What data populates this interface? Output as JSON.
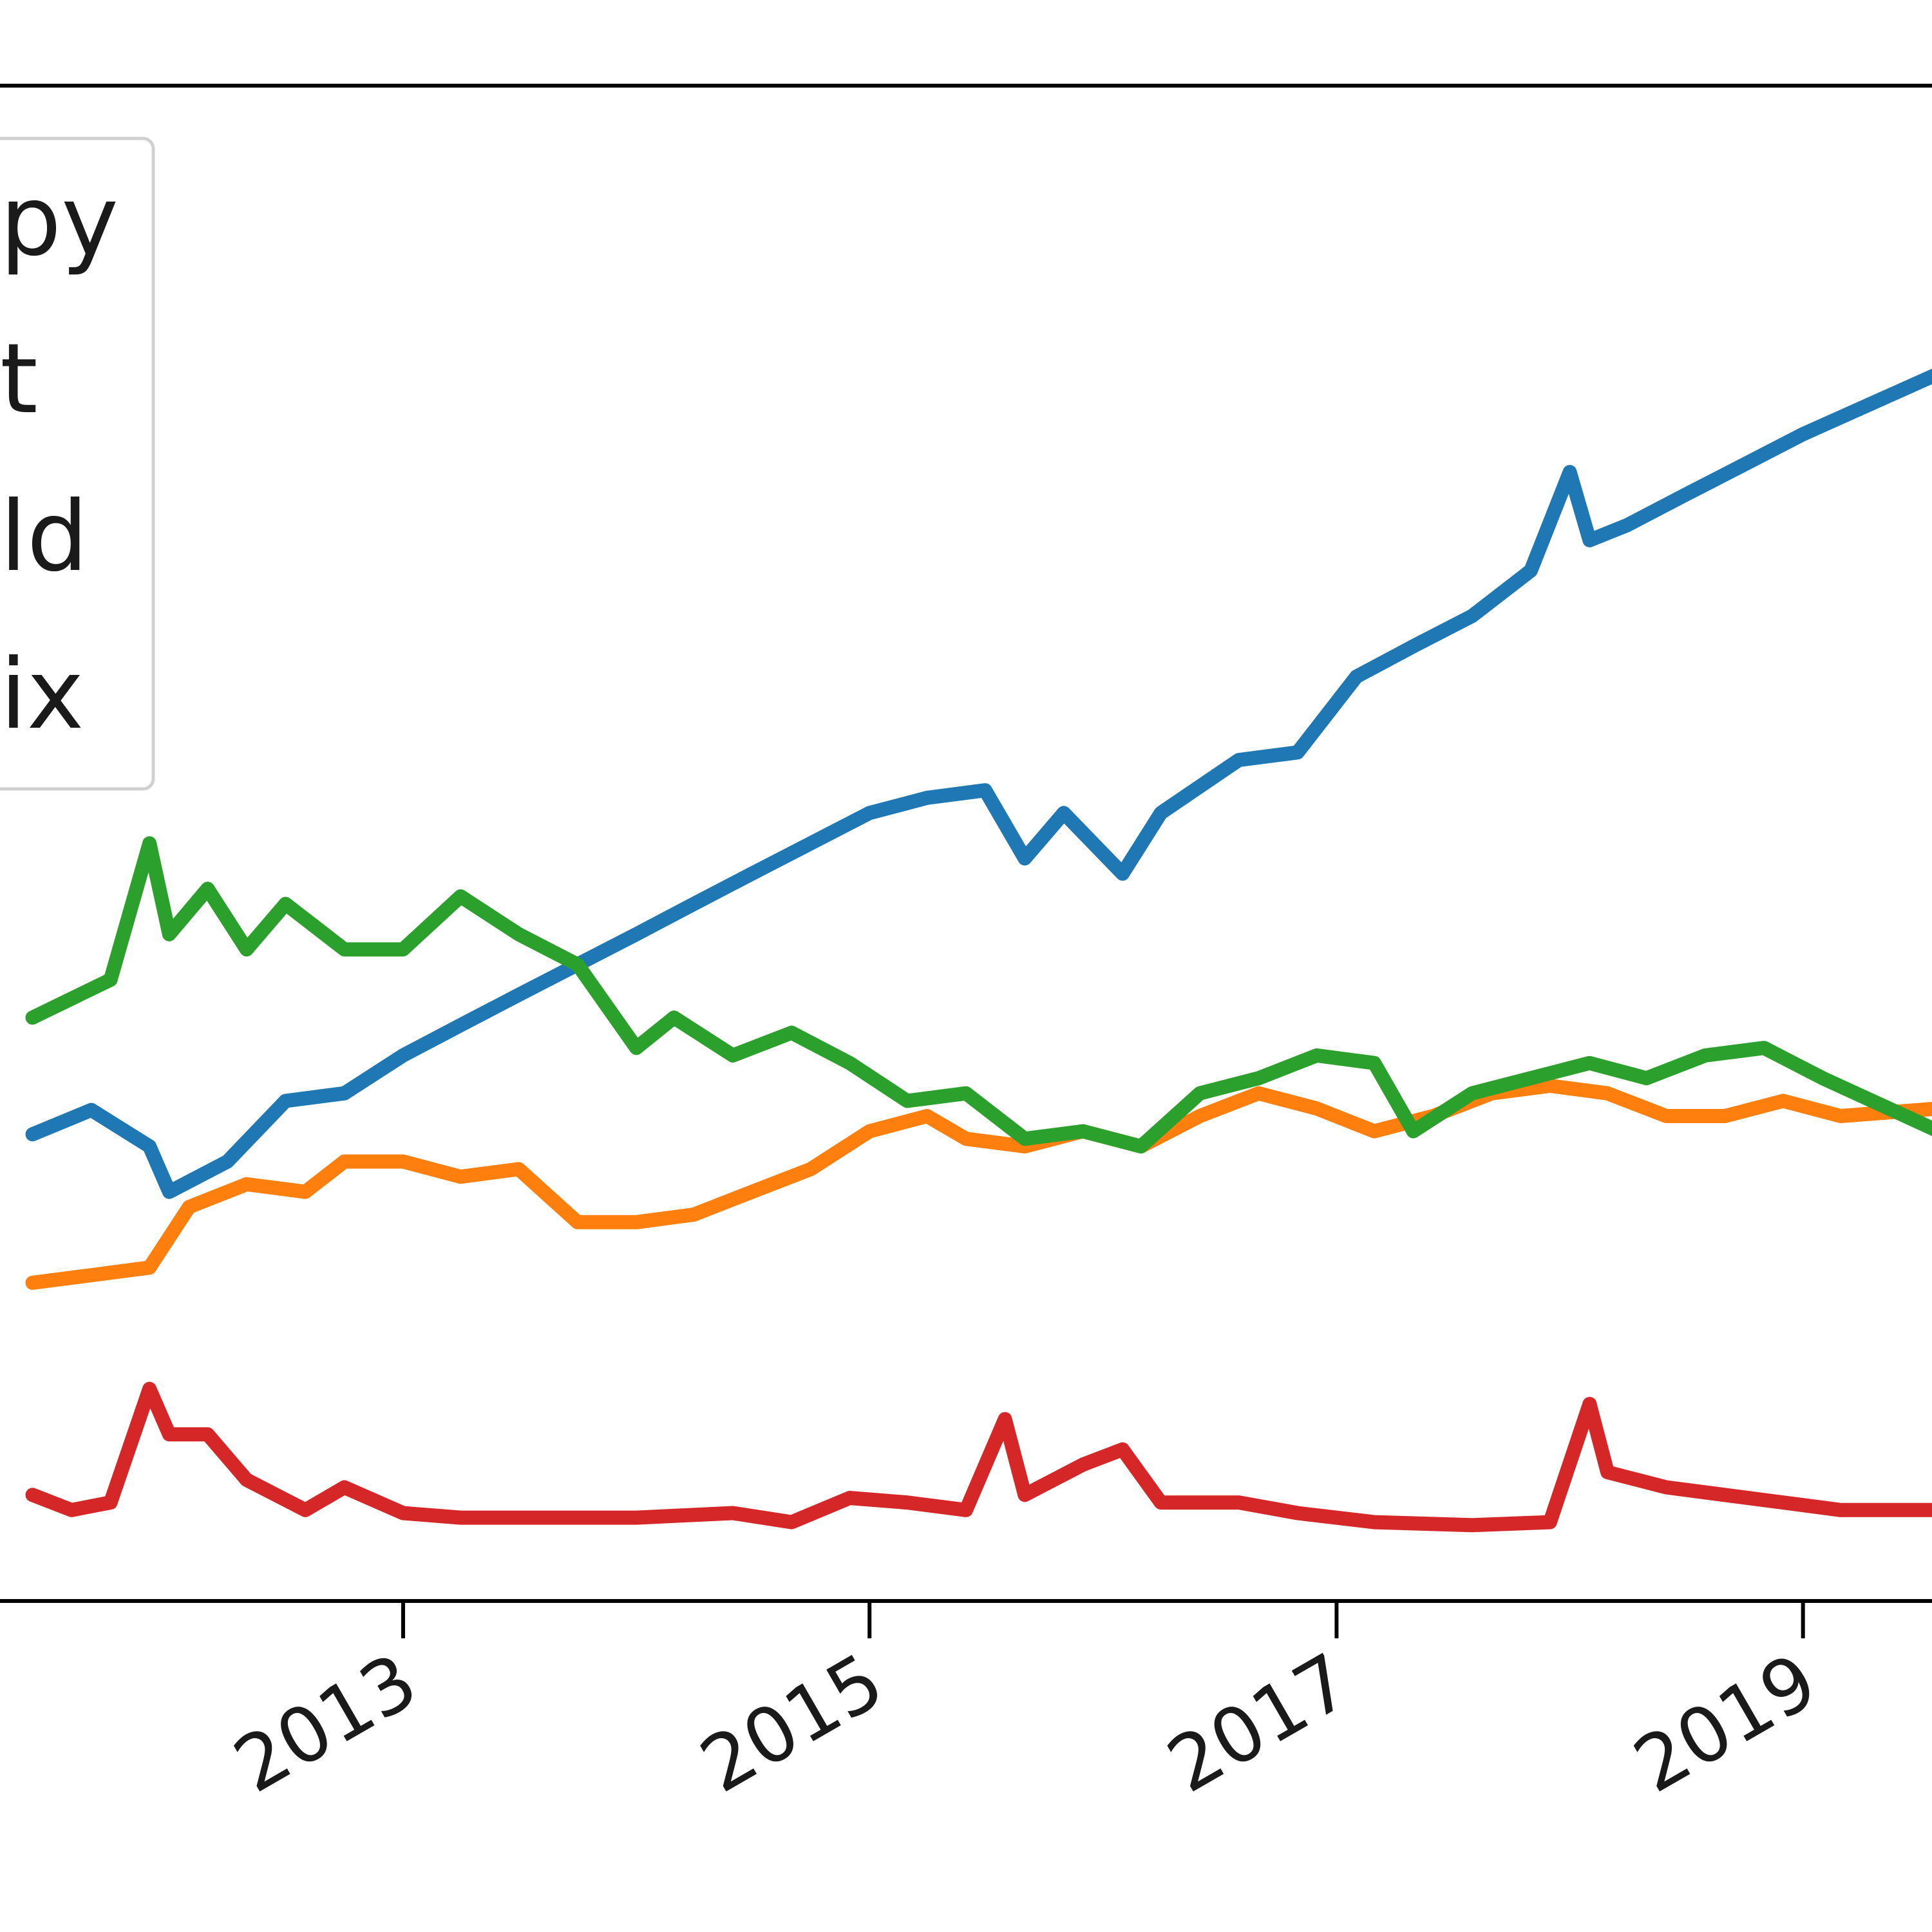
{
  "chart_data": {
    "type": "line",
    "xlim": [
      "2011-04-01",
      "2019-08-01"
    ],
    "ylim": [
      0,
      1
    ],
    "x_tick_labels": [
      "2013",
      "2015",
      "2017",
      "2019"
    ],
    "x_ticks": [
      "2013-01-01",
      "2015-01-01",
      "2017-01-01",
      "2019-01-01"
    ],
    "legend": {
      "placement": "upper-left",
      "entries": [
        "py",
        "t",
        "ld",
        "ix"
      ]
    },
    "series": [
      {
        "name": "py",
        "color": "#1f77b4",
        "points": [
          [
            "2011-06-01",
            0.308
          ],
          [
            "2011-09-01",
            0.324
          ],
          [
            "2011-12-01",
            0.3
          ],
          [
            "2012-01-01",
            0.27
          ],
          [
            "2012-04-01",
            0.29
          ],
          [
            "2012-07-01",
            0.33
          ],
          [
            "2012-10-01",
            0.335
          ],
          [
            "2013-01-01",
            0.36
          ],
          [
            "2013-04-01",
            0.38
          ],
          [
            "2013-07-01",
            0.4
          ],
          [
            "2013-10-01",
            0.42
          ],
          [
            "2014-01-01",
            0.44
          ],
          [
            "2014-04-01",
            0.46
          ],
          [
            "2014-07-01",
            0.48
          ],
          [
            "2014-10-01",
            0.5
          ],
          [
            "2015-01-01",
            0.52
          ],
          [
            "2015-04-01",
            0.53
          ],
          [
            "2015-07-01",
            0.535
          ],
          [
            "2015-09-01",
            0.49
          ],
          [
            "2015-11-01",
            0.52
          ],
          [
            "2016-02-01",
            0.48
          ],
          [
            "2016-04-01",
            0.52
          ],
          [
            "2016-08-01",
            0.555
          ],
          [
            "2016-11-01",
            0.56
          ],
          [
            "2017-02-01",
            0.61
          ],
          [
            "2017-05-01",
            0.63
          ],
          [
            "2017-08-01",
            0.65
          ],
          [
            "2017-11-01",
            0.68
          ],
          [
            "2018-01-01",
            0.745
          ],
          [
            "2018-02-01",
            0.7
          ],
          [
            "2018-04-01",
            0.71
          ],
          [
            "2018-07-01",
            0.73
          ],
          [
            "2018-10-01",
            0.75
          ],
          [
            "2019-01-01",
            0.77
          ],
          [
            "2019-08-01",
            0.81
          ]
        ]
      },
      {
        "name": "t",
        "color": "#ff7f0e",
        "points": [
          [
            "2011-06-01",
            0.21
          ],
          [
            "2011-09-01",
            0.215
          ],
          [
            "2011-12-01",
            0.22
          ],
          [
            "2012-02-01",
            0.26
          ],
          [
            "2012-05-01",
            0.275
          ],
          [
            "2012-08-01",
            0.27
          ],
          [
            "2012-10-01",
            0.29
          ],
          [
            "2013-01-01",
            0.29
          ],
          [
            "2013-04-01",
            0.28
          ],
          [
            "2013-07-01",
            0.285
          ],
          [
            "2013-10-01",
            0.25
          ],
          [
            "2014-01-01",
            0.25
          ],
          [
            "2014-04-01",
            0.255
          ],
          [
            "2014-07-01",
            0.27
          ],
          [
            "2014-10-01",
            0.285
          ],
          [
            "2015-01-01",
            0.31
          ],
          [
            "2015-04-01",
            0.32
          ],
          [
            "2015-06-01",
            0.305
          ],
          [
            "2015-09-01",
            0.3
          ],
          [
            "2015-12-01",
            0.31
          ],
          [
            "2016-03-01",
            0.3
          ],
          [
            "2016-06-01",
            0.32
          ],
          [
            "2016-09-01",
            0.335
          ],
          [
            "2016-12-01",
            0.325
          ],
          [
            "2017-03-01",
            0.31
          ],
          [
            "2017-06-01",
            0.32
          ],
          [
            "2017-09-01",
            0.335
          ],
          [
            "2017-12-01",
            0.34
          ],
          [
            "2018-03-01",
            0.335
          ],
          [
            "2018-06-01",
            0.32
          ],
          [
            "2018-09-01",
            0.32
          ],
          [
            "2018-12-01",
            0.33
          ],
          [
            "2019-03-01",
            0.32
          ],
          [
            "2019-08-01",
            0.325
          ]
        ]
      },
      {
        "name": "ld",
        "color": "#2ca02c",
        "points": [
          [
            "2011-06-01",
            0.385
          ],
          [
            "2011-10-01",
            0.41
          ],
          [
            "2011-12-01",
            0.5
          ],
          [
            "2012-01-01",
            0.44
          ],
          [
            "2012-03-01",
            0.47
          ],
          [
            "2012-05-01",
            0.43
          ],
          [
            "2012-07-01",
            0.46
          ],
          [
            "2012-10-01",
            0.43
          ],
          [
            "2013-01-01",
            0.43
          ],
          [
            "2013-04-01",
            0.465
          ],
          [
            "2013-07-01",
            0.44
          ],
          [
            "2013-10-01",
            0.42
          ],
          [
            "2014-01-01",
            0.365
          ],
          [
            "2014-03-01",
            0.385
          ],
          [
            "2014-06-01",
            0.36
          ],
          [
            "2014-09-01",
            0.375
          ],
          [
            "2014-12-01",
            0.355
          ],
          [
            "2015-03-01",
            0.33
          ],
          [
            "2015-06-01",
            0.335
          ],
          [
            "2015-09-01",
            0.305
          ],
          [
            "2015-12-01",
            0.31
          ],
          [
            "2016-03-01",
            0.3
          ],
          [
            "2016-06-01",
            0.335
          ],
          [
            "2016-09-01",
            0.345
          ],
          [
            "2016-12-01",
            0.36
          ],
          [
            "2017-03-01",
            0.355
          ],
          [
            "2017-05-01",
            0.31
          ],
          [
            "2017-08-01",
            0.335
          ],
          [
            "2017-11-01",
            0.345
          ],
          [
            "2018-02-01",
            0.355
          ],
          [
            "2018-05-01",
            0.345
          ],
          [
            "2018-08-01",
            0.36
          ],
          [
            "2018-11-01",
            0.365
          ],
          [
            "2019-02-01",
            0.345
          ],
          [
            "2019-08-01",
            0.31
          ]
        ]
      },
      {
        "name": "ix",
        "color": "#d62728",
        "points": [
          [
            "2011-06-01",
            0.07
          ],
          [
            "2011-08-01",
            0.06
          ],
          [
            "2011-10-01",
            0.065
          ],
          [
            "2011-12-01",
            0.14
          ],
          [
            "2012-01-01",
            0.11
          ],
          [
            "2012-03-01",
            0.11
          ],
          [
            "2012-05-01",
            0.08
          ],
          [
            "2012-08-01",
            0.06
          ],
          [
            "2012-10-01",
            0.075
          ],
          [
            "2013-01-01",
            0.058
          ],
          [
            "2013-04-01",
            0.055
          ],
          [
            "2013-08-01",
            0.055
          ],
          [
            "2014-01-01",
            0.055
          ],
          [
            "2014-06-01",
            0.058
          ],
          [
            "2014-09-01",
            0.052
          ],
          [
            "2014-12-01",
            0.068
          ],
          [
            "2015-03-01",
            0.065
          ],
          [
            "2015-06-01",
            0.06
          ],
          [
            "2015-08-01",
            0.12
          ],
          [
            "2015-09-01",
            0.07
          ],
          [
            "2015-12-01",
            0.09
          ],
          [
            "2016-02-01",
            0.1
          ],
          [
            "2016-04-01",
            0.065
          ],
          [
            "2016-08-01",
            0.065
          ],
          [
            "2016-11-01",
            0.058
          ],
          [
            "2017-03-01",
            0.052
          ],
          [
            "2017-08-01",
            0.05
          ],
          [
            "2017-12-01",
            0.052
          ],
          [
            "2018-02-01",
            0.13
          ],
          [
            "2018-03-01",
            0.085
          ],
          [
            "2018-06-01",
            0.075
          ],
          [
            "2018-12-01",
            0.065
          ],
          [
            "2019-03-01",
            0.06
          ],
          [
            "2019-08-01",
            0.06
          ]
        ]
      }
    ]
  }
}
